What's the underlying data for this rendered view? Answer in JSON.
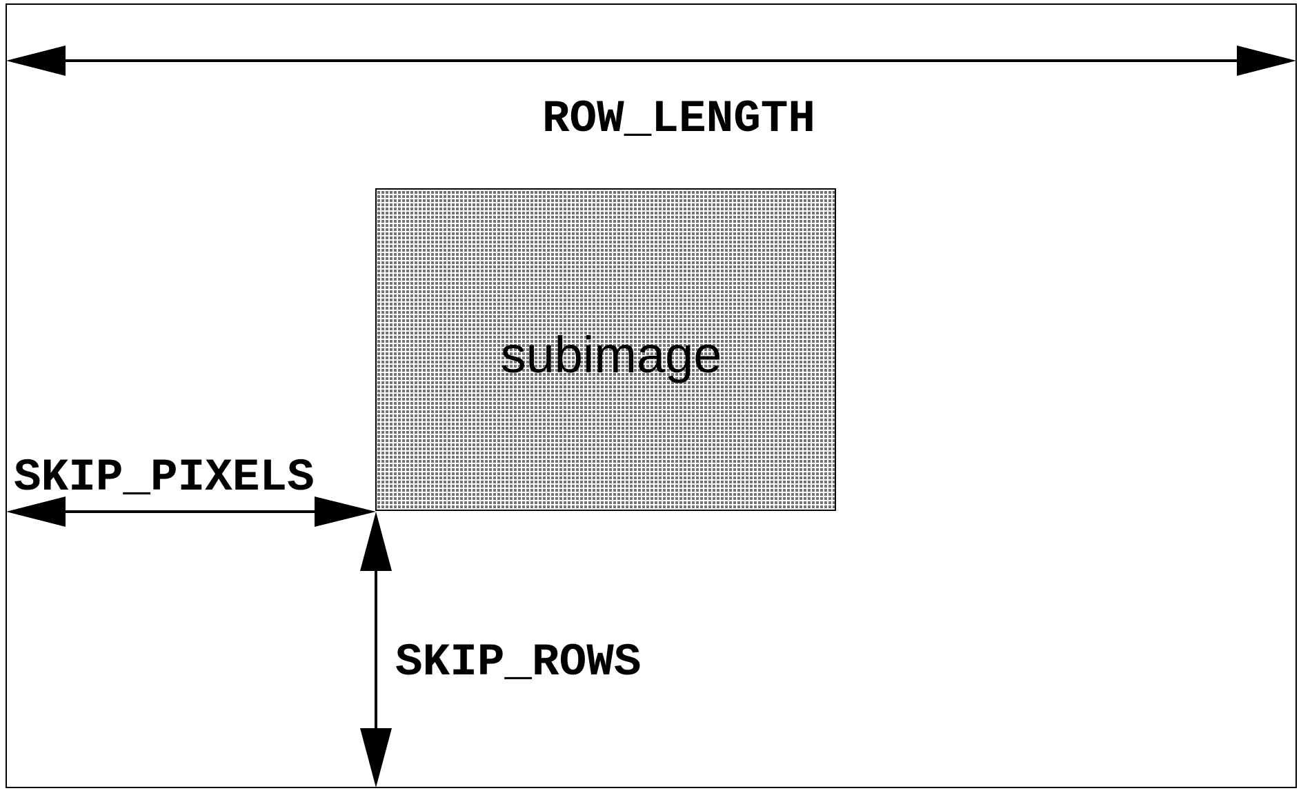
{
  "labels": {
    "row_length": "ROW_LENGTH",
    "subimage": "subimage",
    "skip_pixels": "SKIP_PIXELS",
    "skip_rows": "SKIP_ROWS"
  },
  "colors": {
    "line": "#000000",
    "background": "#ffffff",
    "stipple": "#000000"
  }
}
